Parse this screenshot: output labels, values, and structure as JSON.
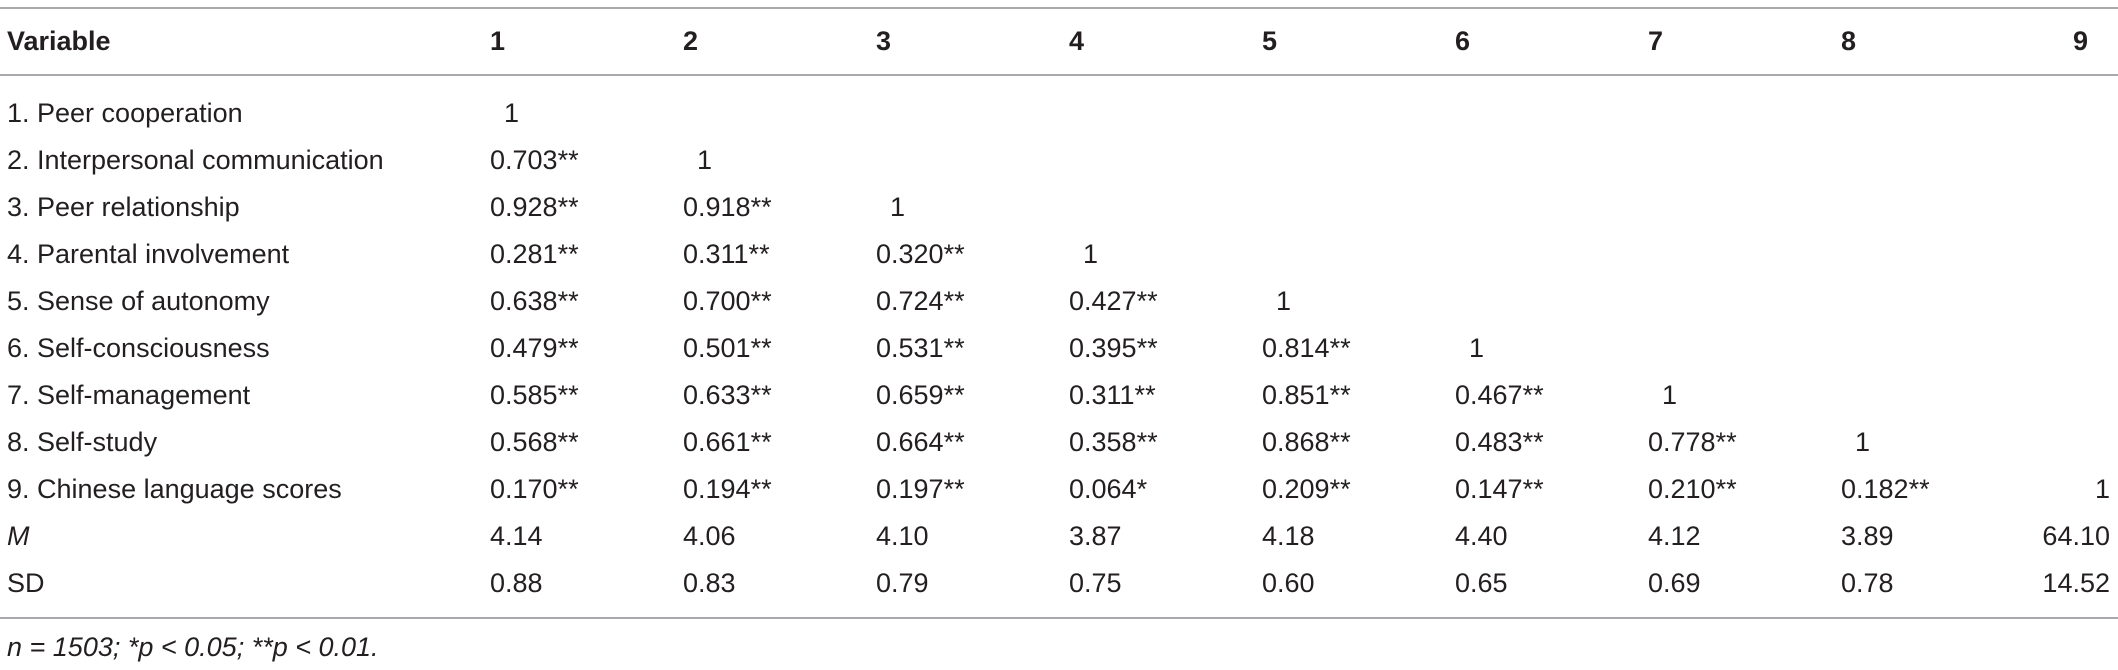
{
  "table": {
    "header": [
      "Variable",
      "1",
      "2",
      "3",
      "4",
      "5",
      "6",
      "7",
      "8",
      "9"
    ],
    "rows": [
      [
        "1. Peer cooperation",
        "1",
        "",
        "",
        "",
        "",
        "",
        "",
        "",
        ""
      ],
      [
        "2. Interpersonal communication",
        "0.703**",
        "1",
        "",
        "",
        "",
        "",
        "",
        "",
        ""
      ],
      [
        "3. Peer relationship",
        "0.928**",
        "0.918**",
        "1",
        "",
        "",
        "",
        "",
        "",
        ""
      ],
      [
        "4. Parental involvement",
        "0.281**",
        "0.311**",
        "0.320**",
        "1",
        "",
        "",
        "",
        "",
        ""
      ],
      [
        "5. Sense of autonomy",
        "0.638**",
        "0.700**",
        "0.724**",
        "0.427**",
        "1",
        "",
        "",
        "",
        ""
      ],
      [
        "6. Self-consciousness",
        "0.479**",
        "0.501**",
        "0.531**",
        "0.395**",
        "0.814**",
        "1",
        "",
        "",
        ""
      ],
      [
        "7. Self-management",
        "0.585**",
        "0.633**",
        "0.659**",
        "0.311**",
        "0.851**",
        "0.467**",
        "1",
        "",
        ""
      ],
      [
        "8. Self-study",
        "0.568**",
        "0.661**",
        "0.664**",
        "0.358**",
        "0.868**",
        "0.483**",
        "0.778**",
        "1",
        ""
      ],
      [
        "9. Chinese language scores",
        "0.170**",
        "0.194**",
        "0.197**",
        "0.064*",
        "0.209**",
        "0.147**",
        "0.210**",
        "0.182**",
        "1"
      ],
      [
        "M",
        "4.14",
        "4.06",
        "4.10",
        "3.87",
        "4.18",
        "4.40",
        "4.12",
        "3.89",
        "64.10"
      ],
      [
        "SD",
        "0.88",
        "0.83",
        "0.79",
        "0.75",
        "0.60",
        "0.65",
        "0.69",
        "0.78",
        "14.52"
      ]
    ],
    "note": "n = 1503; *p < 0.05; **p < 0.01."
  }
}
